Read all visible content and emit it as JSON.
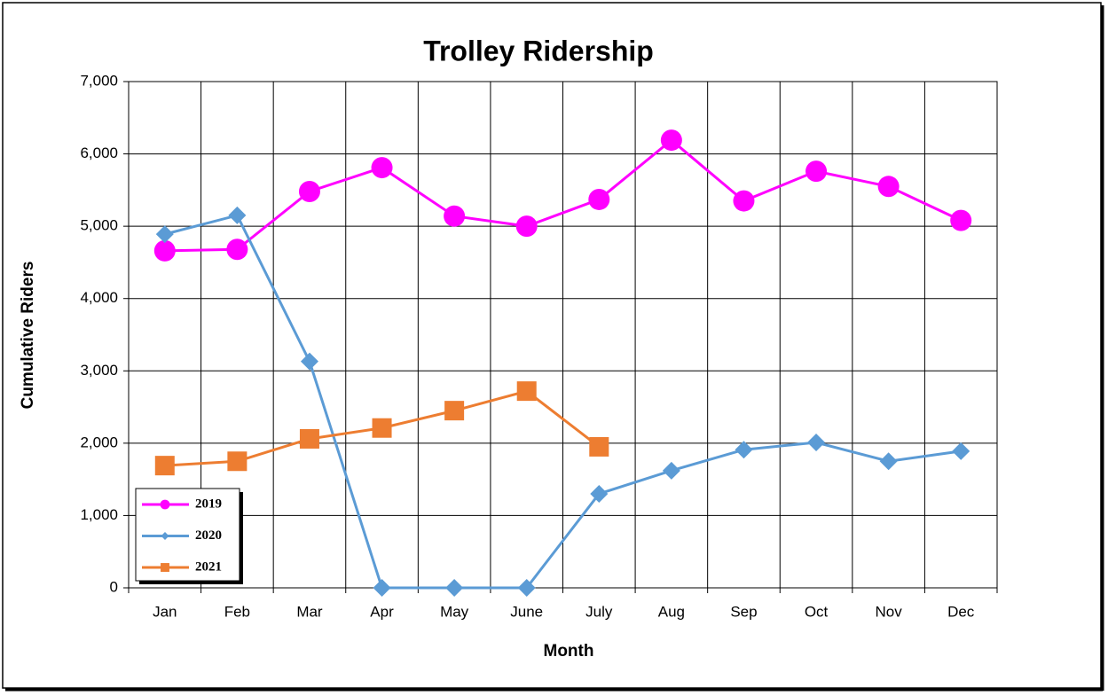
{
  "chart_data": {
    "type": "line",
    "title": "Trolley Ridership",
    "x_label": "Month",
    "y_label": "Cumulative Riders",
    "categories": [
      "Jan",
      "Feb",
      "Mar",
      "Apr",
      "May",
      "June",
      "July",
      "Aug",
      "Sep",
      "Oct",
      "Nov",
      "Dec"
    ],
    "series": [
      {
        "name": "2019",
        "color": "#ff00ff",
        "marker": "circle",
        "values": [
          4660,
          4680,
          5480,
          5810,
          5140,
          5000,
          5370,
          6190,
          5350,
          5760,
          5550,
          5080
        ]
      },
      {
        "name": "2020",
        "color": "#5b9bd5",
        "marker": "diamond",
        "values": [
          4890,
          5150,
          3130,
          0,
          0,
          0,
          1300,
          1620,
          1910,
          2010,
          1750,
          1890
        ]
      },
      {
        "name": "2021",
        "color": "#ed7d31",
        "marker": "square",
        "values": [
          1690,
          1750,
          2060,
          2210,
          2450,
          2720,
          1950,
          null,
          null,
          null,
          null,
          null
        ]
      }
    ],
    "ylim": [
      0,
      7000
    ],
    "yticks": [
      0,
      {
        "value": 1000,
        "label": "1,000"
      },
      {
        "value": 2000,
        "label": "2,000"
      },
      {
        "value": 3000,
        "label": "3,000"
      },
      {
        "value": 4000,
        "label": "4,000"
      },
      {
        "value": 5000,
        "label": "5,000"
      },
      {
        "value": 6000,
        "label": "6,000"
      },
      {
        "value": 7000,
        "label": "7,000"
      }
    ],
    "grid": true,
    "legend": "lower left"
  }
}
